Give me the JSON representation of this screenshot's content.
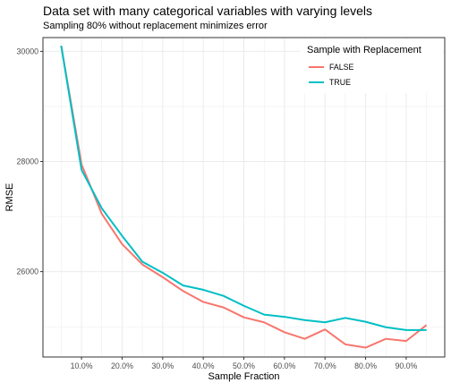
{
  "chart_data": {
    "type": "line",
    "title": "Data set with many categorical variables with varying levels",
    "subtitle": "Sampling 80% without replacement minimizes error",
    "xlabel": "Sample Fraction",
    "ylabel": "RMSE",
    "xlim": [
      0.005,
      0.995
    ],
    "ylim": [
      24450,
      30250
    ],
    "x": [
      0.05,
      0.1,
      0.15,
      0.2,
      0.25,
      0.3,
      0.35,
      0.4,
      0.45,
      0.5,
      0.55,
      0.6,
      0.65,
      0.7,
      0.75,
      0.8,
      0.85,
      0.9,
      0.95
    ],
    "x_ticks": [
      0.1,
      0.2,
      0.3,
      0.4,
      0.5,
      0.6,
      0.7,
      0.8,
      0.9
    ],
    "x_tick_labels": [
      "10.0%",
      "20.0%",
      "30.0%",
      "40.0%",
      "50.0%",
      "60.0%",
      "70.0%",
      "80.0%",
      "90.0%"
    ],
    "y_ticks": [
      26000,
      28000,
      30000
    ],
    "y_tick_labels": [
      "26000",
      "28000",
      "30000"
    ],
    "grid": true,
    "legend": {
      "title": "Sample with Replacement",
      "position": "top-right"
    },
    "series": [
      {
        "name": "FALSE",
        "color": "#F8766D",
        "values": [
          30100,
          27950,
          27050,
          26500,
          26130,
          25900,
          25650,
          25450,
          25350,
          25170,
          25080,
          24900,
          24780,
          24950,
          24680,
          24620,
          24780,
          24740,
          25030
        ]
      },
      {
        "name": "TRUE",
        "color": "#00BFC4",
        "values": [
          30100,
          27850,
          27150,
          26650,
          26180,
          25980,
          25750,
          25670,
          25560,
          25380,
          25220,
          25180,
          25120,
          25080,
          25160,
          25090,
          24990,
          24940,
          24940
        ]
      }
    ]
  }
}
